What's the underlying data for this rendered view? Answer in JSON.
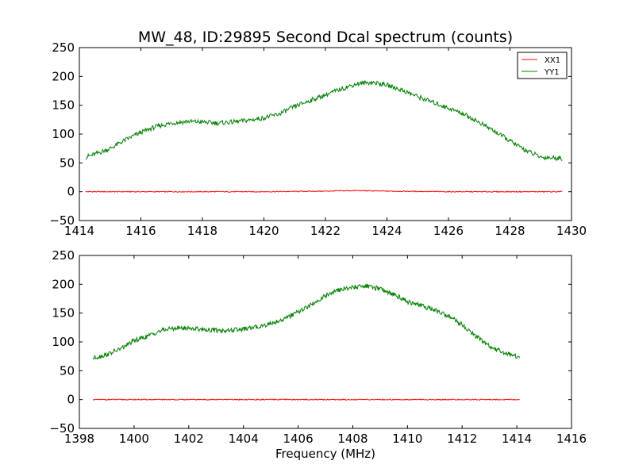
{
  "chart_data": [
    {
      "type": "line",
      "title": "MW_48, ID:29895 Second Dcal spectrum (counts)",
      "xlabel": "",
      "ylabel": "",
      "xlim": [
        1414,
        1430
      ],
      "ylim": [
        -50,
        250
      ],
      "xticks": [
        "1414",
        "1416",
        "1418",
        "1420",
        "1422",
        "1424",
        "1426",
        "1428",
        "1430"
      ],
      "yticks": [
        "250",
        "200",
        "150",
        "100",
        "50",
        "0",
        "−50"
      ],
      "grid": false,
      "legend": {
        "placement": "top-right",
        "entries": [
          "XX1",
          "YY1"
        ]
      },
      "series": [
        {
          "name": "XX1",
          "color": "#ff0000",
          "x": [
            1414.2,
            1416,
            1418,
            1420,
            1422,
            1423,
            1424,
            1426,
            1428,
            1429.7
          ],
          "values": [
            0,
            0,
            0,
            0,
            1,
            2,
            1,
            0,
            0,
            0
          ]
        },
        {
          "name": "YY1",
          "color": "#008000",
          "x": [
            1414.2,
            1414.5,
            1415,
            1415.5,
            1416,
            1416.5,
            1417,
            1417.5,
            1418,
            1418.5,
            1419,
            1419.5,
            1420,
            1420.5,
            1421,
            1421.5,
            1422,
            1422.5,
            1423,
            1423.5,
            1424,
            1424.5,
            1425,
            1425.5,
            1426,
            1426.5,
            1427,
            1427.5,
            1428,
            1428.5,
            1429,
            1429.7
          ],
          "values": [
            60,
            65,
            75,
            90,
            103,
            113,
            119,
            122,
            121,
            119,
            121,
            124,
            128,
            135,
            148,
            158,
            168,
            178,
            187,
            190,
            185,
            176,
            165,
            155,
            145,
            135,
            120,
            105,
            88,
            72,
            60,
            58
          ]
        }
      ]
    },
    {
      "type": "line",
      "title": "",
      "xlabel": "Frequency (MHz)",
      "ylabel": "",
      "xlim": [
        1398,
        1416
      ],
      "ylim": [
        -50,
        250
      ],
      "xticks": [
        "1398",
        "1400",
        "1402",
        "1404",
        "1406",
        "1408",
        "1410",
        "1412",
        "1414",
        "1416"
      ],
      "yticks": [
        "250",
        "200",
        "150",
        "100",
        "50",
        "0",
        "−50"
      ],
      "grid": false,
      "series": [
        {
          "color": "#ff0000",
          "x": [
            1398.5,
            1400,
            1402,
            1404,
            1406,
            1408,
            1410,
            1412,
            1414.1
          ],
          "values": [
            0,
            0,
            0,
            0,
            0,
            0,
            0,
            0,
            0
          ]
        },
        {
          "color": "#008000",
          "x": [
            1398.5,
            1399,
            1399.5,
            1400,
            1400.5,
            1401,
            1401.5,
            1402,
            1402.5,
            1403,
            1403.5,
            1404,
            1404.5,
            1405,
            1405.5,
            1406,
            1406.5,
            1407,
            1407.5,
            1408,
            1408.5,
            1409,
            1409.5,
            1410,
            1410.5,
            1411,
            1411.5,
            1412,
            1412.5,
            1413,
            1413.5,
            1414.1
          ],
          "values": [
            72,
            78,
            88,
            102,
            110,
            120,
            124,
            124,
            122,
            120,
            120,
            122,
            126,
            132,
            140,
            152,
            165,
            180,
            190,
            195,
            197,
            192,
            183,
            170,
            163,
            155,
            145,
            130,
            110,
            92,
            82,
            73
          ]
        }
      ]
    }
  ]
}
